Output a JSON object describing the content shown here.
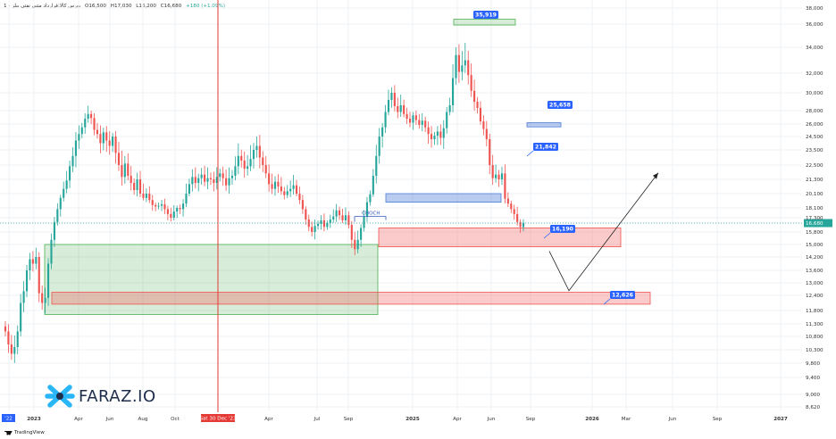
{
  "header": {
    "symbol": "بورس کالا:قرارداد متنی نفتی بیلز - 1",
    "open": "O16,500",
    "high": "H17,030",
    "low": "L16,200",
    "close": "C16,680",
    "change": "+180 (+1.09%)"
  },
  "logo": {
    "text": "FARAZ.IO"
  },
  "footer": {
    "brand": "TradingView"
  },
  "colors": {
    "up": "#26a69a",
    "down": "#ef5350",
    "blue_zone": "#4f7dd8",
    "red_zone": "#ef5350",
    "green_zone": "#4caf50",
    "marker": "#e53935",
    "label_bg": "#2962ff"
  },
  "chart_data": {
    "type": "candlestick",
    "y_ticks": [
      8620,
      9000,
      9400,
      9800,
      10300,
      10800,
      11300,
      11800,
      12400,
      13000,
      13600,
      14200,
      15000,
      15800,
      16680,
      17300,
      18100,
      20100,
      21300,
      22500,
      23500,
      24500,
      26000,
      28000,
      30000,
      32000,
      34000,
      36000,
      38000
    ],
    "y_tick_labels": [
      "8,620",
      "9,000",
      "9,400",
      "9,800",
      "10,300",
      "10,800",
      "11,300",
      "11,800",
      "12,400",
      "13,000",
      "13,600",
      "14,200",
      "15,000",
      "15,800",
      "16,680",
      "17,300",
      "18,100",
      "20,100",
      "21,300",
      "22,500",
      "23,500",
      "24,500",
      "26,000",
      "28,000",
      "30,000",
      "32,000",
      "34,000",
      "36,000",
      "38,000"
    ],
    "current_price": 16680,
    "x_ticks": [
      "'22",
      "2023",
      "Apr",
      "Jun",
      "Aug",
      "Oct",
      "Sat 30 Dec '23",
      "Apr",
      "Jul",
      "Sep",
      "2025",
      "Apr",
      "Jun",
      "Sep",
      "2026",
      "Mar",
      "Jun",
      "Sep",
      "2027"
    ],
    "marker_date": "Sat 30 Dec '23",
    "annotations": [
      "CHOCH"
    ],
    "levels": [
      {
        "label": "35,919",
        "value": 35919
      },
      {
        "label": "25,658",
        "value": 25658
      },
      {
        "label": "21,842",
        "value": 21842
      },
      {
        "label": "16,190",
        "value": 16190
      },
      {
        "label": "12,626",
        "value": 12626
      }
    ],
    "zones": [
      {
        "kind": "demand",
        "color": "green",
        "low": 11650,
        "high": 15000
      },
      {
        "kind": "demand",
        "color": "red",
        "low": 12050,
        "high": 12550
      },
      {
        "kind": "demand",
        "color": "red",
        "low": 14850,
        "high": 16200
      },
      {
        "kind": "supply",
        "color": "blue",
        "low": 18900,
        "high": 20100
      },
      {
        "kind": "target",
        "color": "blue",
        "low": 25658,
        "high": 26200
      },
      {
        "kind": "target",
        "color": "green",
        "low": 35919,
        "high": 36600
      }
    ],
    "projection": [
      16190,
      12626,
      21842
    ]
  }
}
